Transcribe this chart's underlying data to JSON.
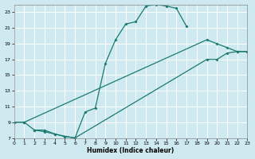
{
  "xlabel": "Humidex (Indice chaleur)",
  "bg_color": "#ceeaf0",
  "grid_color": "#b0d8e0",
  "line_color": "#1a7a6e",
  "xlim": [
    0,
    23
  ],
  "ylim": [
    7,
    24
  ],
  "xticks": [
    0,
    1,
    2,
    3,
    4,
    5,
    6,
    7,
    8,
    9,
    10,
    11,
    12,
    13,
    14,
    15,
    16,
    17,
    18,
    19,
    20,
    21,
    22,
    23
  ],
  "yticks": [
    7,
    9,
    11,
    13,
    15,
    17,
    19,
    21,
    23
  ],
  "line1_x": [
    0,
    1,
    2,
    3,
    4,
    5,
    6,
    7,
    8,
    9,
    10,
    11,
    12,
    13,
    14,
    15,
    16,
    17
  ],
  "line1_y": [
    9,
    9,
    8,
    8,
    7.5,
    7.2,
    7.0,
    10.3,
    10.8,
    16.5,
    19.5,
    21.5,
    21.8,
    23.8,
    24.0,
    23.8,
    23.5,
    21.2
  ],
  "line2_x": [
    0,
    1,
    19,
    20,
    21,
    22,
    23
  ],
  "line2_y": [
    9,
    9,
    19.5,
    19.0,
    18.5,
    18.0,
    18.0
  ],
  "line3_x": [
    2,
    3,
    4,
    5,
    6,
    19,
    20,
    21,
    22,
    23
  ],
  "line3_y": [
    8,
    7.8,
    7.5,
    7.2,
    7.0,
    17.0,
    17.0,
    17.8,
    18.0,
    18.0
  ]
}
